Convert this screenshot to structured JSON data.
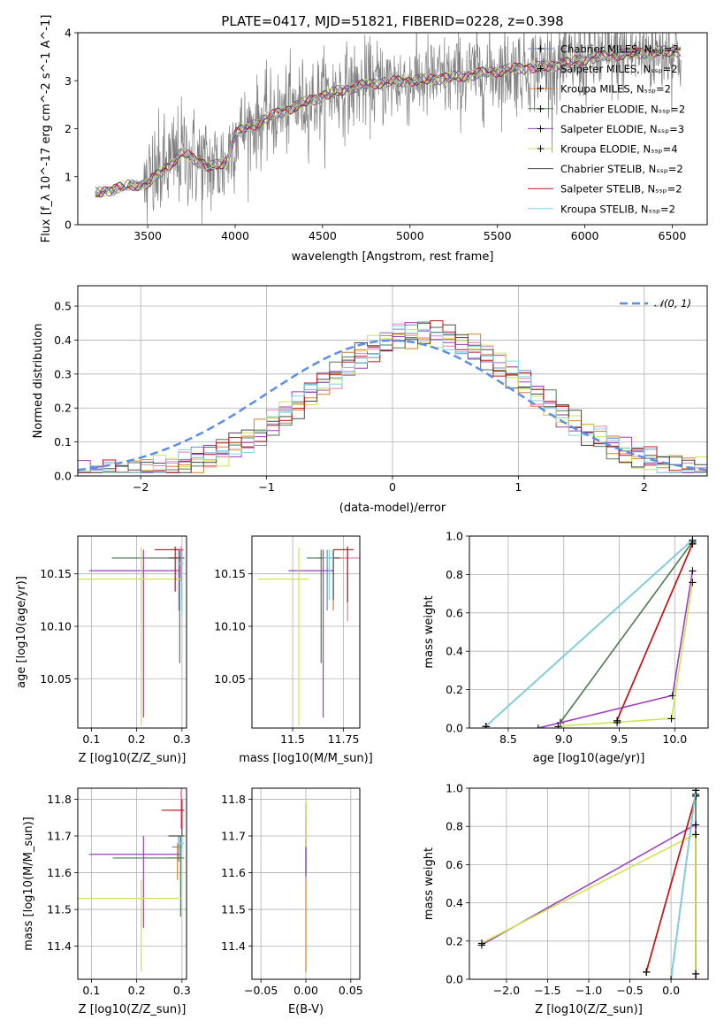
{
  "figure": {
    "title": "PLATE=0417, MJD=51821, FIBERID=0228, z=0.398"
  },
  "chart_data": [
    {
      "type": "line",
      "name": "spectrum",
      "xlabel": "wavelength [Angstrom, rest frame]",
      "ylabel": "Flux [f_λ 10^-17 erg cm^-2 s^-1 A^-1]",
      "xlim": [
        3100,
        6700
      ],
      "ylim": [
        0,
        4
      ],
      "xticks": [
        3500,
        4000,
        4500,
        5000,
        5500,
        6000,
        6500
      ],
      "yticks": [
        0,
        1,
        2,
        3,
        4
      ],
      "legend_position": "top-right",
      "data_color": "#808080",
      "series": [
        {
          "name": "Chabrier MILES, N_SSP=2",
          "color": "#6a8fc9"
        },
        {
          "name": "Salpeter MILES, N_SSP=2",
          "color": "#e879b0"
        },
        {
          "name": "Kroupa MILES, N_SSP=2",
          "color": "#e07c2a"
        },
        {
          "name": "Chabrier ELODIE, N_SSP=2",
          "color": "#4e7a50"
        },
        {
          "name": "Salpeter ELODIE, N_SSP=3",
          "color": "#9b3fc2"
        },
        {
          "name": "Kroupa ELODIE, N_SSP=4",
          "color": "#cfe44d"
        },
        {
          "name": "Chabrier STELIB, N_SSP=2",
          "color": "#4a4a4a"
        },
        {
          "name": "Salpeter STELIB, N_SSP=2",
          "color": "#c0151c"
        },
        {
          "name": "Kroupa STELIB, N_SSP=2",
          "color": "#7fd6ea"
        }
      ],
      "continuum": [
        [
          3200,
          0.65
        ],
        [
          3400,
          0.82
        ],
        [
          3500,
          0.85
        ],
        [
          3700,
          1.5
        ],
        [
          3850,
          1.2
        ],
        [
          3950,
          1.3
        ],
        [
          4000,
          1.9
        ],
        [
          4200,
          2.25
        ],
        [
          4400,
          2.55
        ],
        [
          4600,
          2.8
        ],
        [
          4800,
          2.95
        ],
        [
          5000,
          3.0
        ],
        [
          5200,
          3.05
        ],
        [
          5400,
          3.15
        ],
        [
          5600,
          3.25
        ],
        [
          5800,
          3.3
        ],
        [
          6000,
          3.45
        ],
        [
          6200,
          3.55
        ],
        [
          6400,
          3.6
        ],
        [
          6550,
          3.62
        ]
      ]
    },
    {
      "type": "line",
      "name": "residual-histogram",
      "xlabel": "(data-model)/error",
      "ylabel": "Normed distribution",
      "xlim": [
        -2.5,
        2.5
      ],
      "ylim": [
        0,
        0.56
      ],
      "xticks": [
        -2,
        -1,
        0,
        1,
        2
      ],
      "yticks": [
        0.0,
        0.1,
        0.2,
        0.3,
        0.4,
        0.5
      ],
      "reference_curve": "N(0,1)",
      "reference_color": "#5b8ee6",
      "legend_position": "top-right"
    },
    {
      "type": "scatter",
      "name": "age-vs-Z",
      "xlabel": "Z [log10(Z/Z_sun)]",
      "ylabel": "age [log10(age/yr)]",
      "xlim": [
        0.07,
        0.31
      ],
      "ylim": [
        10.003,
        10.186
      ],
      "xticks": [
        0.1,
        0.2,
        0.3
      ],
      "yticks": [
        10.05,
        10.1,
        10.15
      ],
      "points": [
        {
          "x": 0.293,
          "y": 10.165,
          "xerr": [
            0.015,
            0.008
          ],
          "yerr": [
            0.05,
            0.008
          ]
        },
        {
          "x": 0.298,
          "y": 10.173,
          "xerr": [
            0.02,
            0.006
          ],
          "yerr": [
            0.03,
            0.003
          ]
        },
        {
          "x": 0.3,
          "y": 10.165,
          "xerr": [
            0.025,
            0.005
          ],
          "yerr": [
            0.05,
            0.008
          ]
        },
        {
          "x": 0.295,
          "y": 10.165,
          "xerr": [
            0.15,
            0.008
          ],
          "yerr": [
            0.1,
            0.008
          ]
        },
        {
          "x": 0.215,
          "y": 10.153,
          "xerr": [
            0.12,
            0.08
          ],
          "yerr": [
            0.14,
            0.02
          ]
        },
        {
          "x": 0.21,
          "y": 10.145,
          "xerr": [
            0.14,
            0.09
          ],
          "yerr": [
            0.14,
            0.03
          ]
        },
        {
          "x": 0.3,
          "y": 10.165,
          "xerr": [
            0.03,
            0.005
          ],
          "yerr": [
            0.04,
            0.008
          ]
        },
        {
          "x": 0.285,
          "y": 10.173,
          "xerr": [
            0.045,
            0.01
          ],
          "yerr": [
            0.04,
            0.003
          ]
        },
        {
          "x": 0.3,
          "y": 10.16,
          "xerr": [
            0.01,
            0.005
          ],
          "yerr": [
            0.05,
            0.012
          ]
        }
      ]
    },
    {
      "type": "scatter",
      "name": "age-vs-mass",
      "xlabel": "mass [log10(M/M_sun)]",
      "ylabel": "",
      "xlim": [
        11.3,
        11.83
      ],
      "ylim": [
        10.003,
        10.186
      ],
      "xticks": [
        11.5,
        11.75
      ],
      "yticks": [
        10.05,
        10.1,
        10.15
      ],
      "points": [
        {
          "x": 11.67,
          "y": 10.165,
          "xerr": [
            0.04,
            0.03
          ],
          "yerr": [
            0.05,
            0.008
          ]
        },
        {
          "x": 11.77,
          "y": 10.165,
          "xerr": [
            0.05,
            0.06
          ],
          "yerr": [
            0.06,
            0.008
          ]
        },
        {
          "x": 11.7,
          "y": 10.165,
          "xerr": [
            0.08,
            0.05
          ],
          "yerr": [
            0.05,
            0.008
          ]
        },
        {
          "x": 11.64,
          "y": 10.165,
          "xerr": [
            0.07,
            0.05
          ],
          "yerr": [
            0.1,
            0.008
          ]
        },
        {
          "x": 11.65,
          "y": 10.153,
          "xerr": [
            0.17,
            0.05
          ],
          "yerr": [
            0.14,
            0.02
          ]
        },
        {
          "x": 11.53,
          "y": 10.145,
          "xerr": [
            0.2,
            0.05
          ],
          "yerr": [
            0.14,
            0.03
          ]
        },
        {
          "x": 11.7,
          "y": 10.165,
          "xerr": [
            0.03,
            0.03
          ],
          "yerr": [
            0.04,
            0.008
          ]
        },
        {
          "x": 11.77,
          "y": 10.173,
          "xerr": [
            0.07,
            0.03
          ],
          "yerr": [
            0.05,
            0.003
          ]
        },
        {
          "x": 11.68,
          "y": 10.165,
          "xerr": [
            0.03,
            0.02
          ],
          "yerr": [
            0.04,
            0.008
          ]
        }
      ]
    },
    {
      "type": "line",
      "name": "mass-weight-vs-age",
      "xlabel": "age [log10(age/yr)]",
      "ylabel": "mass weight",
      "xlim": [
        8.15,
        10.3
      ],
      "ylim": [
        0,
        1
      ],
      "xticks": [
        8.5,
        9.0,
        9.5,
        10.0
      ],
      "yticks": [
        0.0,
        0.2,
        0.4,
        0.6,
        0.8,
        1.0
      ],
      "series": [
        {
          "x": [
            8.3,
            10.16
          ],
          "y": [
            0.01,
            0.98
          ]
        },
        {
          "x": [
            9.48,
            10.16
          ],
          "y": [
            0.04,
            0.96
          ]
        },
        {
          "x": [
            9.48,
            10.16
          ],
          "y": [
            0.04,
            0.96
          ]
        },
        {
          "x": [
            8.97,
            10.16
          ],
          "y": [
            0.03,
            0.97
          ]
        },
        {
          "x": [
            8.77,
            9.98,
            10.16
          ],
          "y": [
            0.0,
            0.17,
            0.82
          ]
        },
        {
          "x": [
            8.95,
            9.48,
            9.97,
            10.16
          ],
          "y": [
            0.01,
            0.03,
            0.05,
            0.76
          ]
        },
        {
          "x": [
            8.3,
            10.16
          ],
          "y": [
            0.01,
            0.98
          ]
        },
        {
          "x": [
            9.48,
            10.16
          ],
          "y": [
            0.04,
            0.96
          ]
        },
        {
          "x": [
            8.3,
            10.16
          ],
          "y": [
            0.01,
            0.98
          ]
        }
      ]
    },
    {
      "type": "scatter",
      "name": "mass-vs-Z",
      "xlabel": "Z [log10(Z/Z_sun)]",
      "ylabel": "mass [log10(M/M_sun)]",
      "xlim": [
        0.07,
        0.31
      ],
      "ylim": [
        11.31,
        11.83
      ],
      "xticks": [
        0.1,
        0.2,
        0.3
      ],
      "yticks": [
        11.4,
        11.5,
        11.6,
        11.7,
        11.8
      ],
      "points": [
        {
          "x": 0.293,
          "y": 11.67,
          "xerr": [
            0.015,
            0.008
          ],
          "yerr": [
            0.04,
            0.03
          ]
        },
        {
          "x": 0.298,
          "y": 11.77,
          "xerr": [
            0.02,
            0.006
          ],
          "yerr": [
            0.05,
            0.06
          ]
        },
        {
          "x": 0.29,
          "y": 11.64,
          "xerr": [
            0.025,
            0.005
          ],
          "yerr": [
            0.06,
            0.04
          ]
        },
        {
          "x": 0.297,
          "y": 11.64,
          "xerr": [
            0.15,
            0.008
          ],
          "yerr": [
            0.16,
            0.06
          ]
        },
        {
          "x": 0.215,
          "y": 11.65,
          "xerr": [
            0.12,
            0.08
          ],
          "yerr": [
            0.2,
            0.05
          ]
        },
        {
          "x": 0.21,
          "y": 11.53,
          "xerr": [
            0.14,
            0.09
          ],
          "yerr": [
            0.2,
            0.05
          ]
        },
        {
          "x": 0.3,
          "y": 11.7,
          "xerr": [
            0.03,
            0.005
          ],
          "yerr": [
            0.03,
            0.03
          ]
        },
        {
          "x": 0.3,
          "y": 11.77,
          "xerr": [
            0.045,
            0.005
          ],
          "yerr": [
            0.05,
            0.03
          ]
        },
        {
          "x": 0.3,
          "y": 11.68,
          "xerr": [
            0.01,
            0.005
          ],
          "yerr": [
            0.03,
            0.02
          ]
        }
      ]
    },
    {
      "type": "scatter",
      "name": "mass-vs-EBV",
      "xlabel": "E(B-V)",
      "ylabel": "",
      "xlim": [
        -0.06,
        0.06
      ],
      "ylim": [
        11.31,
        11.83
      ],
      "xticks": [
        -0.05,
        0.0,
        0.05
      ],
      "yticks": [
        11.4,
        11.5,
        11.6,
        11.7,
        11.8
      ],
      "points": [
        {
          "x": 0,
          "y": 11.68,
          "yerr": [
            0.1,
            0.06
          ]
        },
        {
          "x": 0,
          "y": 11.74,
          "yerr": [
            0.16,
            0.05
          ]
        },
        {
          "x": 0,
          "y": 11.53,
          "yerr": [
            0.2,
            0.05
          ]
        },
        {
          "x": 0,
          "y": 11.65,
          "yerr": [
            0.06,
            0.04
          ]
        },
        {
          "x": 0,
          "y": 11.64,
          "yerr": [
            0.04,
            0.15
          ]
        },
        {
          "x": 0,
          "y": 11.7,
          "yerr": [
            0.03,
            0.1
          ]
        }
      ]
    },
    {
      "type": "line",
      "name": "mass-weight-vs-Z",
      "xlabel": "Z [log10(Z/Z_sun)]",
      "ylabel": "mass weight",
      "xlim": [
        -2.45,
        0.45
      ],
      "ylim": [
        0,
        1
      ],
      "xticks": [
        -2.0,
        -1.5,
        -1.0,
        -0.5,
        0.0
      ],
      "yticks": [
        0.0,
        0.2,
        0.4,
        0.6,
        0.8,
        1.0
      ],
      "series": [
        {
          "x": [
            0.0,
            0.3
          ],
          "y": [
            0.0,
            0.99
          ]
        },
        {
          "x": [
            -0.3,
            0.3
          ],
          "y": [
            0.04,
            0.96
          ]
        },
        {
          "x": [
            -0.3,
            0.3
          ],
          "y": [
            0.04,
            0.96
          ]
        },
        {
          "x": [
            0.3,
            0.3
          ],
          "y": [
            0.03,
            0.97
          ]
        },
        {
          "x": [
            -2.3,
            0.3,
            0.3
          ],
          "y": [
            0.18,
            0.81,
            0.0
          ]
        },
        {
          "x": [
            -2.3,
            0.3,
            0.3
          ],
          "y": [
            0.19,
            0.76,
            0.03
          ]
        },
        {
          "x": [
            0.0,
            0.3
          ],
          "y": [
            0.0,
            0.99
          ]
        },
        {
          "x": [
            -0.3,
            0.3
          ],
          "y": [
            0.04,
            0.96
          ]
        },
        {
          "x": [
            0.0,
            0.3
          ],
          "y": [
            0.0,
            0.99
          ]
        }
      ]
    }
  ],
  "labels": {
    "spec_ylabel_main": "Flux [f",
    "spec_ylabel_rest": "10",
    "spec_ylabel_units": " erg cm",
    "hist_legend": "N(0, 1)",
    "ageZ_ylabel": "age  [log",
    "massZ_ylabel": "mass [log"
  }
}
